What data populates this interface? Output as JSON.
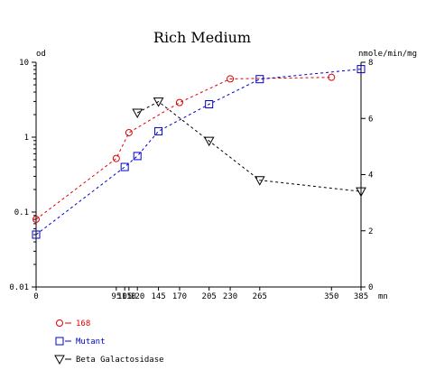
{
  "chart_data": {
    "type": "line",
    "title": "Rich Medium",
    "xlabel": "mn",
    "ylabel_left": "od",
    "ylabel_right": "nmole/min/mg",
    "xlim": [
      0,
      385
    ],
    "x_ticks": [
      0,
      95,
      105,
      110,
      120,
      145,
      170,
      205,
      230,
      265,
      350,
      385
    ],
    "x_tick_labels": [
      "0",
      "95",
      "105",
      "110",
      "120",
      "145",
      "170",
      "205",
      "230",
      "265",
      "350",
      "385"
    ],
    "y_left": {
      "scale": "log",
      "ylim": [
        0.01,
        10
      ],
      "ticks": [
        0.01,
        0.1,
        1,
        10
      ],
      "tick_labels": [
        "0.01",
        "0.1",
        "1",
        "10"
      ]
    },
    "y_right": {
      "scale": "linear",
      "ylim": [
        0,
        8
      ],
      "ticks": [
        0,
        2,
        4,
        6,
        8
      ],
      "tick_labels": [
        "0",
        "2",
        "4",
        "6",
        "8"
      ]
    },
    "grid": false,
    "legend_position": "bottom-left",
    "series": [
      {
        "name": "168",
        "axis": "left",
        "marker": "circle",
        "color": "#dd0000",
        "x": [
          0,
          95,
          110,
          170,
          230,
          350
        ],
        "y": [
          0.08,
          0.52,
          1.15,
          2.9,
          6.0,
          6.3
        ]
      },
      {
        "name": "Mutant",
        "axis": "left",
        "marker": "square",
        "color": "#0000cc",
        "x": [
          0,
          105,
          120,
          145,
          205,
          265,
          385
        ],
        "y": [
          0.05,
          0.4,
          0.56,
          1.2,
          2.75,
          5.95,
          8.1
        ]
      },
      {
        "name": "Beta Galactosidase",
        "axis": "right",
        "marker": "triangle-down",
        "color": "#000000",
        "x": [
          120,
          145,
          205,
          265,
          385
        ],
        "y": [
          6.2,
          6.6,
          5.2,
          3.8,
          3.4
        ]
      }
    ]
  }
}
